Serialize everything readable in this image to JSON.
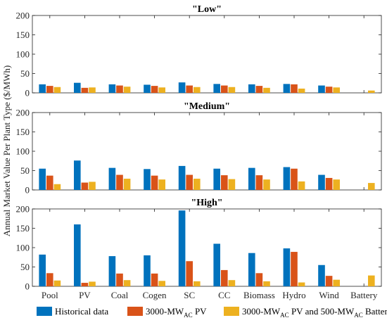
{
  "colors": {
    "historical": "#0072BD",
    "pv": "#D95319",
    "pv_battery": "#EDB120"
  },
  "chart_data": {
    "type": "bar",
    "categories": [
      "Pool",
      "PV",
      "Coal",
      "Cogen",
      "SC",
      "CC",
      "Biomass",
      "Hydro",
      "Wind",
      "Battery"
    ],
    "ylabel": "Annual Market Value Per Plant Type ($/MWh)",
    "ylim": [
      0,
      200
    ],
    "yticks": [
      0,
      50,
      100,
      150,
      200
    ],
    "grid": false,
    "legend_placement": "bottom",
    "legend": [
      {
        "key": "historical",
        "label_main": "Historical data",
        "label_sub": "",
        "label_rest": ""
      },
      {
        "key": "pv",
        "label_main": "3000-MW",
        "label_sub": "AC",
        "label_rest": " PV"
      },
      {
        "key": "pv_battery",
        "label_main": "3000-MW",
        "label_sub": "AC",
        "label_rest": " PV and 500-MW",
        "label_sub2": "AC",
        "label_rest2": " Battery"
      }
    ],
    "panels": [
      {
        "title": "\"Low\"",
        "series": [
          {
            "key": "historical",
            "values": [
              22,
              26,
              22,
              21,
              27,
              23,
              22,
              23,
              19,
              null
            ]
          },
          {
            "key": "pv",
            "values": [
              18,
              13,
              19,
              18,
              19,
              19,
              18,
              22,
              16,
              null
            ]
          },
          {
            "key": "pv_battery",
            "values": [
              15,
              14,
              16,
              14,
              15,
              15,
              13,
              11,
              14,
              6
            ]
          }
        ]
      },
      {
        "title": "\"Medium\"",
        "series": [
          {
            "key": "historical",
            "values": [
              55,
              76,
              57,
              54,
              62,
              55,
              57,
              59,
              39,
              null
            ]
          },
          {
            "key": "pv",
            "values": [
              37,
              19,
              39,
              37,
              39,
              38,
              38,
              55,
              31,
              null
            ]
          },
          {
            "key": "pv_battery",
            "values": [
              15,
              21,
              29,
              27,
              29,
              28,
              27,
              22,
              27,
              18
            ]
          }
        ]
      },
      {
        "title": "\"High\"",
        "series": [
          {
            "key": "historical",
            "values": [
              82,
              160,
              78,
              80,
              196,
              110,
              86,
              98,
              55,
              null
            ]
          },
          {
            "key": "pv",
            "values": [
              34,
              9,
              33,
              33,
              65,
              42,
              34,
              89,
              27,
              null
            ]
          },
          {
            "key": "pv_battery",
            "values": [
              15,
              12,
              16,
              14,
              13,
              16,
              13,
              10,
              17,
              28
            ]
          }
        ]
      }
    ]
  }
}
